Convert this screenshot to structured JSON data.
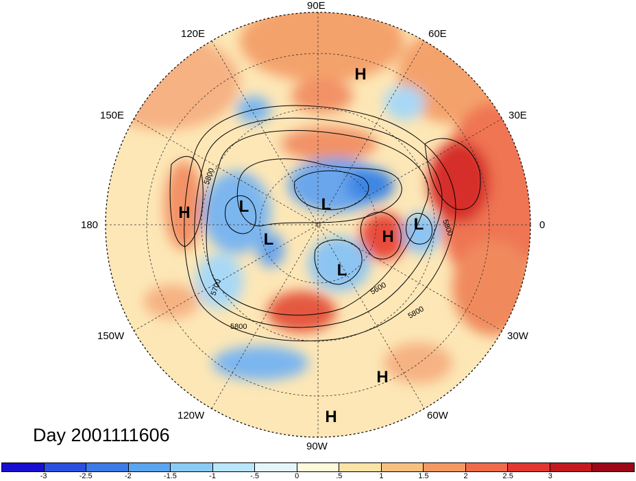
{
  "title": "Day 2001111606",
  "longitude_labels": {
    "lon_90e": "90E",
    "lon_60e": "60E",
    "lon_30e": "30E",
    "lon_0": "0",
    "lon_30w": "30W",
    "lon_60w": "60W",
    "lon_90w": "90W",
    "lon_120w": "120W",
    "lon_150w": "150W",
    "lon_180": "180",
    "lon_150e": "150E",
    "lon_120e": "120E"
  },
  "pressure_centers": [
    "H",
    "H",
    "H",
    "H",
    "H",
    "L",
    "L",
    "L",
    "L",
    "L"
  ],
  "contour_labels": [
    "5800",
    "5700",
    "5800",
    "5600",
    "5800",
    "5800"
  ],
  "colorbar": {
    "colors": [
      "#1a0fd0",
      "#2a50e0",
      "#3c7ae8",
      "#5aa4f0",
      "#8acbf5",
      "#b8e6fa",
      "#e4f6fb",
      "#fdf9d9",
      "#fbe3a6",
      "#f8c07f",
      "#f49862",
      "#ef6b4c",
      "#e03830",
      "#c21a20",
      "#9c0818"
    ],
    "tick_labels": [
      "-3",
      "-2.5",
      "-2",
      "-1.5",
      "-1",
      "-.5",
      "0",
      ".5",
      "1",
      "1.5",
      "2",
      "2.5",
      "3"
    ]
  }
}
